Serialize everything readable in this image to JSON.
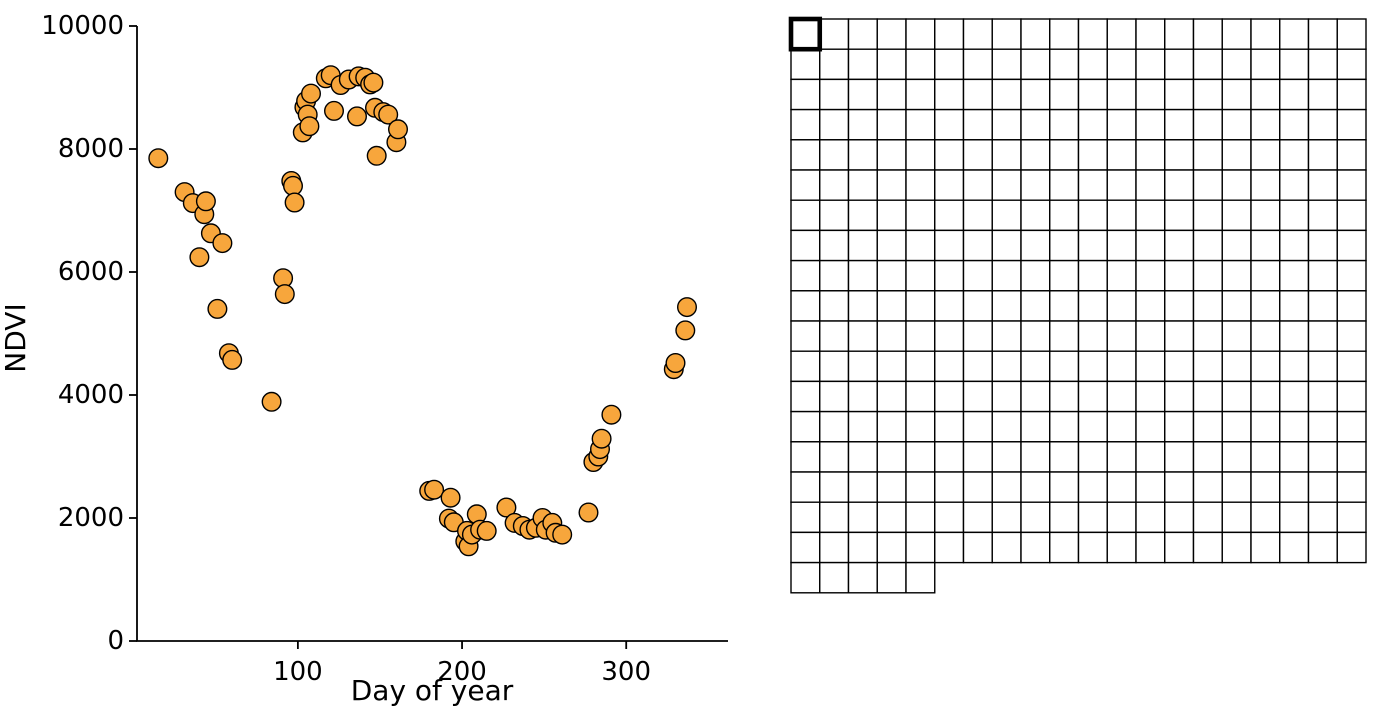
{
  "chart_data": {
    "type": "scatter",
    "title": "",
    "xlabel": "Day of year",
    "ylabel": "NDVI",
    "xlim": [
      2,
      362
    ],
    "ylim": [
      0,
      10000
    ],
    "xticks": [
      100,
      200,
      300
    ],
    "yticks": [
      0,
      2000,
      4000,
      6000,
      8000,
      10000
    ],
    "grid": false,
    "legend_position": "none",
    "axis_color": "#000000",
    "marker": {
      "fill": "#F7A63C",
      "edge": "#000000",
      "radius_px": 9.3,
      "edge_width": 1.4
    },
    "points": [
      [
        15,
        7850
      ],
      [
        31,
        7300
      ],
      [
        36,
        7120
      ],
      [
        40,
        6240
      ],
      [
        43,
        6940
      ],
      [
        44,
        7150
      ],
      [
        47,
        6630
      ],
      [
        51,
        5400
      ],
      [
        54,
        6470
      ],
      [
        58,
        4680
      ],
      [
        60,
        4570
      ],
      [
        84,
        3890
      ],
      [
        91,
        5900
      ],
      [
        92,
        5640
      ],
      [
        96,
        7480
      ],
      [
        97,
        7400
      ],
      [
        98,
        7130
      ],
      [
        103,
        8270
      ],
      [
        104,
        8680
      ],
      [
        105,
        8780
      ],
      [
        106,
        8560
      ],
      [
        107,
        8370
      ],
      [
        108,
        8900
      ],
      [
        117,
        9150
      ],
      [
        120,
        9200
      ],
      [
        122,
        8620
      ],
      [
        126,
        9040
      ],
      [
        131,
        9130
      ],
      [
        136,
        8530
      ],
      [
        137,
        9180
      ],
      [
        141,
        9160
      ],
      [
        144,
        9050
      ],
      [
        146,
        9080
      ],
      [
        147,
        8670
      ],
      [
        148,
        7890
      ],
      [
        152,
        8600
      ],
      [
        155,
        8560
      ],
      [
        160,
        8110
      ],
      [
        161,
        8320
      ],
      [
        180,
        2440
      ],
      [
        183,
        2460
      ],
      [
        192,
        1990
      ],
      [
        193,
        2330
      ],
      [
        195,
        1930
      ],
      [
        202,
        1620
      ],
      [
        203,
        1790
      ],
      [
        204,
        1540
      ],
      [
        206,
        1730
      ],
      [
        209,
        2060
      ],
      [
        211,
        1810
      ],
      [
        215,
        1790
      ],
      [
        227,
        2170
      ],
      [
        232,
        1920
      ],
      [
        237,
        1870
      ],
      [
        241,
        1810
      ],
      [
        245,
        1840
      ],
      [
        249,
        2000
      ],
      [
        251,
        1810
      ],
      [
        255,
        1920
      ],
      [
        257,
        1760
      ],
      [
        261,
        1730
      ],
      [
        277,
        2090
      ],
      [
        280,
        2910
      ],
      [
        283,
        3000
      ],
      [
        284,
        3120
      ],
      [
        285,
        3290
      ],
      [
        291,
        3680
      ],
      [
        329,
        4420
      ],
      [
        330,
        4520
      ],
      [
        336,
        5050
      ],
      [
        337,
        5430
      ]
    ]
  },
  "day_grid": {
    "columns": 20,
    "full_rows": 18,
    "last_row_cells": 5,
    "total_cells": 365,
    "selected_cell_index": 0,
    "cell_fill": "#ffffff",
    "cell_border_color": "#000000",
    "selected_border_color": "#000000"
  }
}
